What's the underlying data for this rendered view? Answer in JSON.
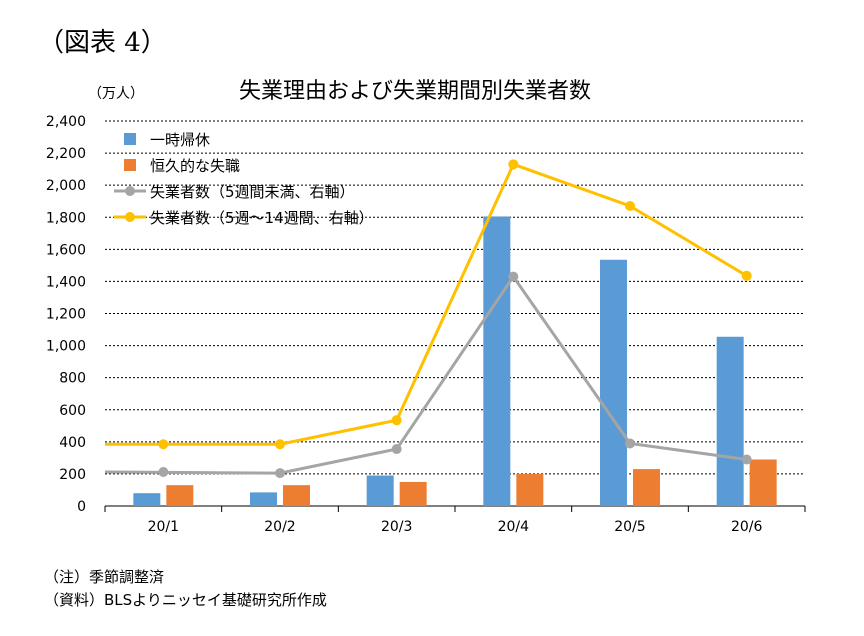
{
  "figure_label": "（図表 4）",
  "notes": {
    "note1": "（注）季節調整済",
    "note2": "（資料）BLSよりニッセイ基礎研究所作成"
  },
  "chart_data": {
    "type": "bar",
    "title": "失業理由および失業期間別失業者数",
    "unit_label": "（万人）",
    "xlabel": "",
    "ylabel": "",
    "ylim": [
      0,
      2400
    ],
    "ytick_step": 200,
    "yticks": [
      "0",
      "200",
      "400",
      "600",
      "800",
      "1,000",
      "1,200",
      "1,400",
      "1,600",
      "1,800",
      "2,000",
      "2,200",
      "2,400"
    ],
    "categories": [
      "20/1",
      "20/2",
      "20/3",
      "20/4",
      "20/5",
      "20/6"
    ],
    "grid": true,
    "legend_position": "top-left",
    "series": [
      {
        "name": "一時帰休",
        "kind": "bar",
        "color": "#5b9bd5",
        "values": [
          80,
          85,
          190,
          1805,
          1535,
          1055
        ]
      },
      {
        "name": "恒久的な失職",
        "kind": "bar",
        "color": "#ed7d31",
        "values": [
          130,
          130,
          150,
          200,
          230,
          290
        ]
      },
      {
        "name": "失業者数（5週間未満、右軸）",
        "kind": "line",
        "color": "#a5a5a5",
        "values": [
          212,
          205,
          355,
          1430,
          390,
          290
        ]
      },
      {
        "name": "失業者数（5週～14週間、右軸）",
        "kind": "line",
        "color": "#ffc000",
        "values": [
          385,
          385,
          535,
          2130,
          1870,
          1435
        ]
      }
    ]
  }
}
